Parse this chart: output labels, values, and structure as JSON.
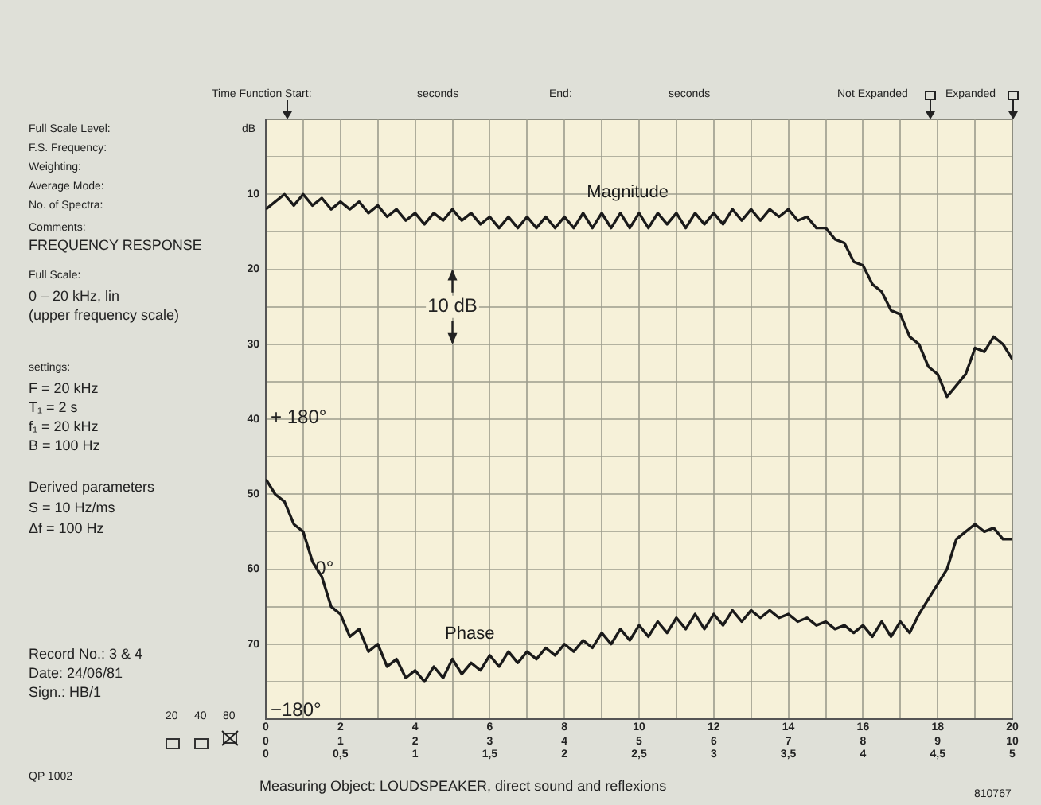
{
  "chart_data": {
    "type": "line",
    "marker": "none",
    "line_style": "solid",
    "grid": true,
    "legend": false,
    "x": [
      0,
      0.25,
      0.5,
      0.75,
      1,
      1.25,
      1.5,
      1.75,
      2,
      2.25,
      2.5,
      2.75,
      3,
      3.25,
      3.5,
      3.75,
      4,
      4.25,
      4.5,
      4.75,
      5,
      5.25,
      5.5,
      5.75,
      6,
      6.25,
      6.5,
      6.75,
      7,
      7.25,
      7.5,
      7.75,
      8,
      8.25,
      8.5,
      8.75,
      9,
      9.25,
      9.5,
      9.75,
      10,
      10.25,
      10.5,
      10.75,
      11,
      11.25,
      11.5,
      11.75,
      12,
      12.25,
      12.5,
      12.75,
      13,
      13.25,
      13.5,
      13.75,
      14,
      14.25,
      14.5,
      14.75,
      15,
      15.25,
      15.5,
      15.75,
      16,
      16.25,
      16.5,
      16.75,
      17,
      17.25,
      17.5,
      17.75,
      18,
      18.25,
      18.5,
      18.75,
      19,
      19.25,
      19.5,
      19.75,
      20
    ],
    "series": [
      {
        "name": "Magnitude",
        "color": "#1a1a1a",
        "values": [
          12,
          11,
          10,
          11.5,
          10,
          11.5,
          10.5,
          12,
          11,
          12,
          11,
          12.5,
          11.5,
          13,
          12,
          13.5,
          12.5,
          14,
          12.5,
          13.5,
          12,
          13.5,
          12.5,
          14,
          13,
          14.5,
          13,
          14.5,
          13,
          14.5,
          13,
          14.5,
          13,
          14.5,
          12.5,
          14.5,
          12.5,
          14.5,
          12.5,
          14.5,
          12.5,
          14.5,
          12.5,
          14,
          12.5,
          14.5,
          12.5,
          14,
          12.5,
          14,
          12,
          13.5,
          12,
          13.5,
          12,
          13,
          12,
          13.5,
          13,
          14.5,
          14.5,
          16,
          16.5,
          19,
          19.5,
          22,
          23,
          25.5,
          26,
          29,
          30,
          33,
          34,
          37,
          35.5,
          34,
          30.5,
          31,
          29,
          30,
          32
        ]
      },
      {
        "name": "Phase",
        "color": "#1a1a1a",
        "values": [
          48,
          50,
          51,
          54,
          55,
          59,
          61,
          65,
          66,
          69,
          68,
          71,
          70,
          73,
          72,
          74.5,
          73.5,
          75,
          73,
          74.5,
          72,
          74,
          72.5,
          73.5,
          71.5,
          73,
          71,
          72.5,
          71,
          72,
          70.5,
          71.5,
          70,
          71,
          69.5,
          70.5,
          68.5,
          70,
          68,
          69.5,
          67.5,
          69,
          67,
          68.5,
          66.5,
          68,
          66,
          68,
          66,
          67.5,
          65.5,
          67,
          65.5,
          66.5,
          65.5,
          66.5,
          66,
          67,
          66.5,
          67.5,
          67,
          68,
          67.5,
          68.5,
          67.5,
          69,
          67,
          69,
          67,
          68.5,
          66,
          64,
          62,
          60,
          56,
          55,
          54,
          55,
          54.5,
          56,
          56
        ]
      }
    ],
    "xlim": [
      0,
      20
    ],
    "xticks": [
      0,
      {
        "value": 1,
        "label": null
      },
      2,
      {
        "value": 3,
        "label": null
      },
      4,
      {
        "value": 5,
        "label": null
      },
      6,
      {
        "value": 7,
        "label": null
      },
      8,
      {
        "value": 9,
        "label": null
      },
      10,
      {
        "value": 11,
        "label": null
      },
      12,
      {
        "value": 13,
        "label": null
      },
      14,
      {
        "value": 15,
        "label": null
      },
      16,
      {
        "value": 17,
        "label": null
      },
      18,
      {
        "value": 19,
        "label": null
      },
      20
    ],
    "x2lim": [
      0,
      10
    ],
    "x2ticks": [
      0,
      1,
      2,
      3,
      4,
      5,
      6,
      7,
      8,
      9,
      10
    ],
    "ylim": [
      80,
      0
    ],
    "yticks": [
      {
        "value": 0,
        "label": null
      },
      {
        "value": 5,
        "label": null
      },
      10,
      {
        "value": 15,
        "label": null
      },
      20,
      {
        "value": 25,
        "label": null
      },
      30,
      {
        "value": 35,
        "label": null
      },
      40,
      {
        "value": 45,
        "label": null
      },
      50,
      {
        "value": 55,
        "label": null
      },
      60,
      {
        "value": 65,
        "label": null
      },
      70,
      {
        "value": 75,
        "label": null
      },
      {
        "value": 80,
        "label": null
      }
    ],
    "annotations": [
      "Time Function Start:",
      "seconds",
      "End:",
      "seconds",
      "Not Expanded",
      "Expanded",
      "Full Scale Level:",
      "dB",
      "F.S. Frequency:",
      "Weighting:",
      "Average Mode:",
      "No. of Spectra:",
      "Comments:",
      "FREQUENCY RESPONSE",
      "Full Scale:",
      "0 – 20 kHz, lin",
      "(upper frequency scale)",
      "settings:",
      "F = 20 kHz",
      "T₁ = 2 s",
      "f₁ = 20 kHz",
      "B = 100 Hz",
      "Derived parameters",
      "S = 10 Hz/ms",
      "Δf = 100 Hz",
      "Record No.: 3 & 4",
      "Date: 24/06/81",
      "Sign.: HB/1",
      "20",
      "40",
      "80",
      "QP 1002",
      "Measuring Object: LOUDSPEAKER, direct sound and reflexions",
      "810767",
      "+ 180°",
      "−180°",
      "0",
      "0,5",
      "1",
      "1,5",
      "2",
      "2,5",
      "3",
      "3,5",
      "4",
      "4,5",
      "5",
      {
        "text": "0°",
        "x": 1.2,
        "y": 60
      },
      {
        "text": "10 dB",
        "x": 5,
        "y": 25
      }
    ]
  }
}
